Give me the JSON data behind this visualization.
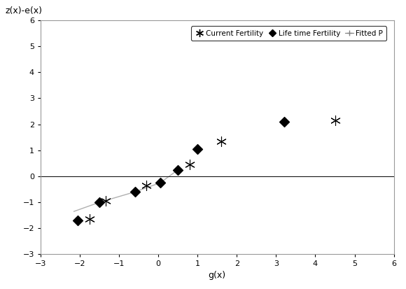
{
  "current_fertility_x": [
    -1.75,
    -1.35,
    -0.3,
    0.8,
    1.6,
    4.5
  ],
  "current_fertility_y": [
    -1.65,
    -0.95,
    -0.35,
    0.45,
    1.35,
    2.15
  ],
  "lifetime_fertility_x": [
    -2.05,
    -1.5,
    -0.6,
    0.05,
    0.5,
    1.0,
    3.2
  ],
  "lifetime_fertility_y": [
    -1.7,
    -1.0,
    -0.6,
    -0.25,
    0.25,
    1.05,
    2.1
  ],
  "fitted_x": [
    -2.15,
    -1.5,
    -0.6,
    0.05,
    0.5
  ],
  "fitted_y": [
    -1.35,
    -1.0,
    -0.6,
    -0.25,
    0.25
  ],
  "plot_title": "z(x)-e(x)",
  "xlabel": "g(x)",
  "xlim": [
    -3,
    6
  ],
  "ylim": [
    -3,
    6
  ],
  "xticks": [
    -3,
    -2,
    -1,
    0,
    1,
    2,
    3,
    4,
    5,
    6
  ],
  "yticks": [
    -3,
    -2,
    -1,
    0,
    1,
    2,
    3,
    4,
    5,
    6
  ],
  "legend_labels": [
    "Current Fertility",
    "Life time Fertility",
    "Fitted P"
  ],
  "bg_color": "#ffffff",
  "plot_bg": "#ffffff",
  "line_color": "#b0b0b0",
  "border_color": "#999999"
}
